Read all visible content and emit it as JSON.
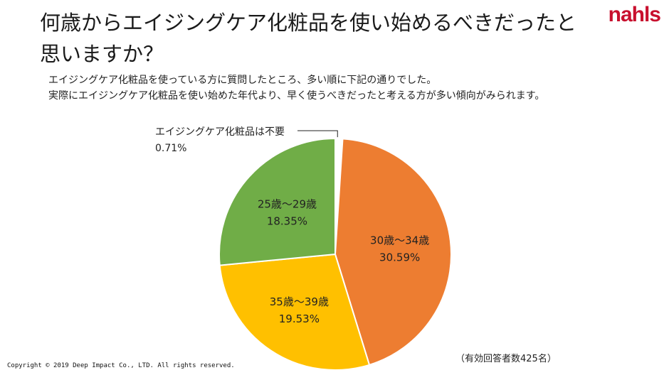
{
  "header": {
    "title_line1": "何歳からエイジングケア化粧品を使い始めるべきだったと",
    "title_line2": "思いますか？",
    "logo_text": "nahls"
  },
  "subtitle": {
    "line1": "エイジングケア化粧品を使っている方に質問したところ、多い順に下記の通りでした。",
    "line2": "実際にエイジングケア化粧品を使い始めた年代より、早く使うべきだったと考える方が多い傾向がみられます。"
  },
  "chart_data": {
    "type": "pie",
    "slices": [
      {
        "label": "エイジングケア化粧品は不要",
        "value": 0.71,
        "display": "0.71%",
        "color": "#ffffff"
      },
      {
        "label": "30歳～34歳",
        "value": 30.59,
        "display": "30.59%",
        "color": "#ed7d31"
      },
      {
        "label": "35歳～39歳",
        "value": 19.53,
        "display": "19.53%",
        "color": "#ffc000"
      },
      {
        "label": "25歳～29歳",
        "value": 18.35,
        "display": "18.35%",
        "color": "#70ad47"
      }
    ]
  },
  "footer": {
    "note": "（有効回答者数425名）",
    "copyright": "Copyright © 2019 Deep Impact Co., LTD. All rights reserved."
  }
}
